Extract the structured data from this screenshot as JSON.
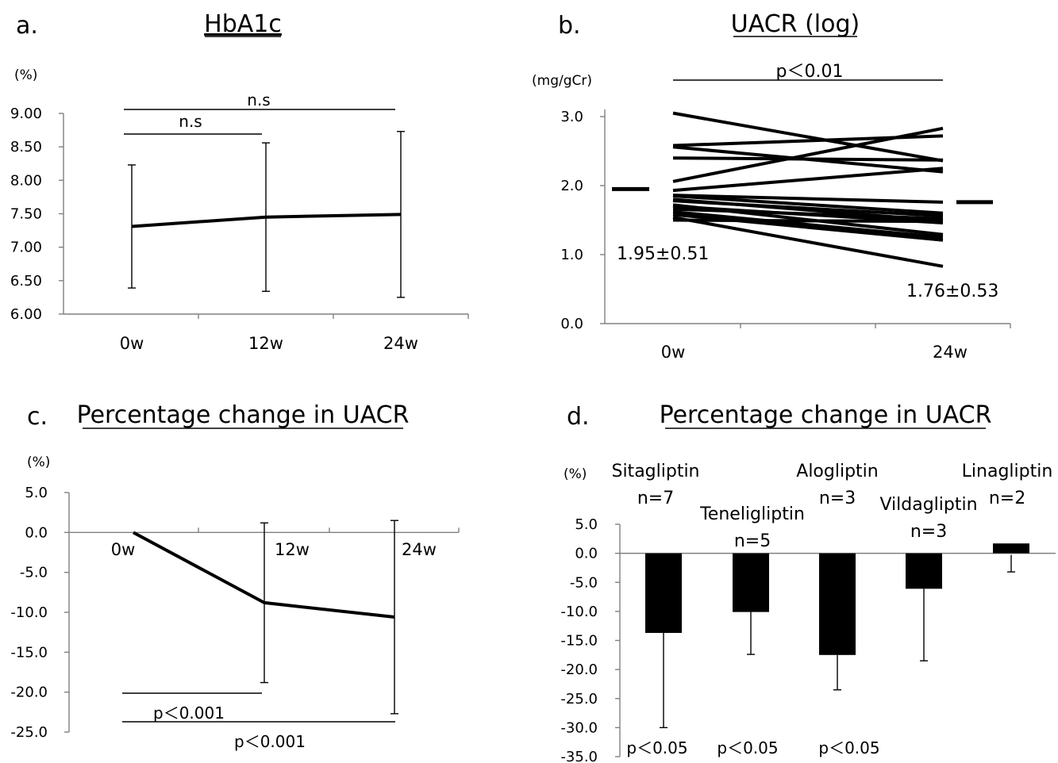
{
  "panels": {
    "a": {
      "letter": "a.",
      "title": "HbA1c",
      "unit": "(%)",
      "sig": [
        "n.s",
        "n.s"
      ]
    },
    "b": {
      "letter": "b.",
      "title": "UACR (log)",
      "unit": "(mg/gCr)",
      "sig": [
        "p＜0.01"
      ],
      "annotations": [
        "1.95±0.51",
        "1.76±0.53"
      ]
    },
    "c": {
      "letter": "c.",
      "title": "Percentage change in UACR",
      "unit": "(%)",
      "sig": [
        "p＜0.001",
        "p＜0.001"
      ]
    },
    "d": {
      "letter": "d.",
      "title": "Percentage change in UACR",
      "unit": "(%)",
      "sig": [
        "p＜0.05",
        "p＜0.05",
        "p＜0.05"
      ]
    }
  },
  "chart_data": [
    {
      "type": "line",
      "panel": "a",
      "title": "HbA1c",
      "ylabel": "(%)",
      "x": [
        "0w",
        "12w",
        "24w"
      ],
      "series": [
        {
          "values": [
            7.31,
            7.45,
            7.49
          ],
          "error": [
            0.92,
            1.11,
            1.24
          ]
        }
      ],
      "ylim": [
        6.0,
        9.0
      ],
      "yticks": [
        "6.00",
        "6.50",
        "7.00",
        "7.50",
        "8.00",
        "8.50",
        "9.00"
      ]
    },
    {
      "type": "line",
      "panel": "b",
      "title": "UACR (log)",
      "ylabel": "(mg/gCr)",
      "x": [
        "0w",
        "24w"
      ],
      "means": [
        1.95,
        1.76
      ],
      "series": [
        {
          "values": [
            3.05,
            2.36
          ]
        },
        {
          "values": [
            2.58,
            2.72
          ]
        },
        {
          "values": [
            2.56,
            2.2
          ]
        },
        {
          "values": [
            2.4,
            2.37
          ]
        },
        {
          "values": [
            2.06,
            2.83
          ]
        },
        {
          "values": [
            1.93,
            2.25
          ]
        },
        {
          "values": [
            1.86,
            1.76
          ]
        },
        {
          "values": [
            1.85,
            1.6
          ]
        },
        {
          "values": [
            1.8,
            1.49
          ]
        },
        {
          "values": [
            1.78,
            1.56
          ]
        },
        {
          "values": [
            1.72,
            1.29
          ]
        },
        {
          "values": [
            1.7,
            1.46
          ]
        },
        {
          "values": [
            1.66,
            1.52
          ]
        },
        {
          "values": [
            1.62,
            1.25
          ]
        },
        {
          "values": [
            1.58,
            1.21
          ]
        },
        {
          "values": [
            1.54,
            0.83
          ]
        },
        {
          "values": [
            1.5,
            1.48
          ]
        }
      ],
      "ylim": [
        0.0,
        3.0
      ],
      "yticks": [
        "0.0",
        "1.0",
        "2.0",
        "3.0"
      ]
    },
    {
      "type": "line",
      "panel": "c",
      "title": "Percentage change in UACR",
      "ylabel": "(%)",
      "x": [
        "0w",
        "12w",
        "24w"
      ],
      "series": [
        {
          "values": [
            0.0,
            -8.8,
            -10.6
          ],
          "error": [
            0,
            10.0,
            12.1
          ]
        }
      ],
      "ylim": [
        -25.0,
        5.0
      ],
      "yticks": [
        "-25.0",
        "-20.0",
        "-15.0",
        "-10.0",
        "-5.0",
        "0.0",
        "5.0"
      ]
    },
    {
      "type": "bar",
      "panel": "d",
      "title": "Percentage change in UACR",
      "ylabel": "(%)",
      "categories": [
        "Sitagliptin",
        "Teneligliptin",
        "Alogliptin",
        "Vildagliptin",
        "Linagliptin"
      ],
      "n_labels": [
        "n=7",
        "n=5",
        "n=3",
        "n=3",
        "n=2"
      ],
      "values": [
        -13.7,
        -10.1,
        -17.5,
        -6.1,
        1.7
      ],
      "error_low": [
        16.3,
        7.3,
        6.0,
        12.4,
        4.9
      ],
      "ylim": [
        -35.0,
        5.0
      ],
      "yticks": [
        "-35.0",
        "-30.0",
        "-25.0",
        "-20.0",
        "-15.0",
        "-10.0",
        "-5.0",
        "0.0",
        "5.0"
      ]
    }
  ]
}
